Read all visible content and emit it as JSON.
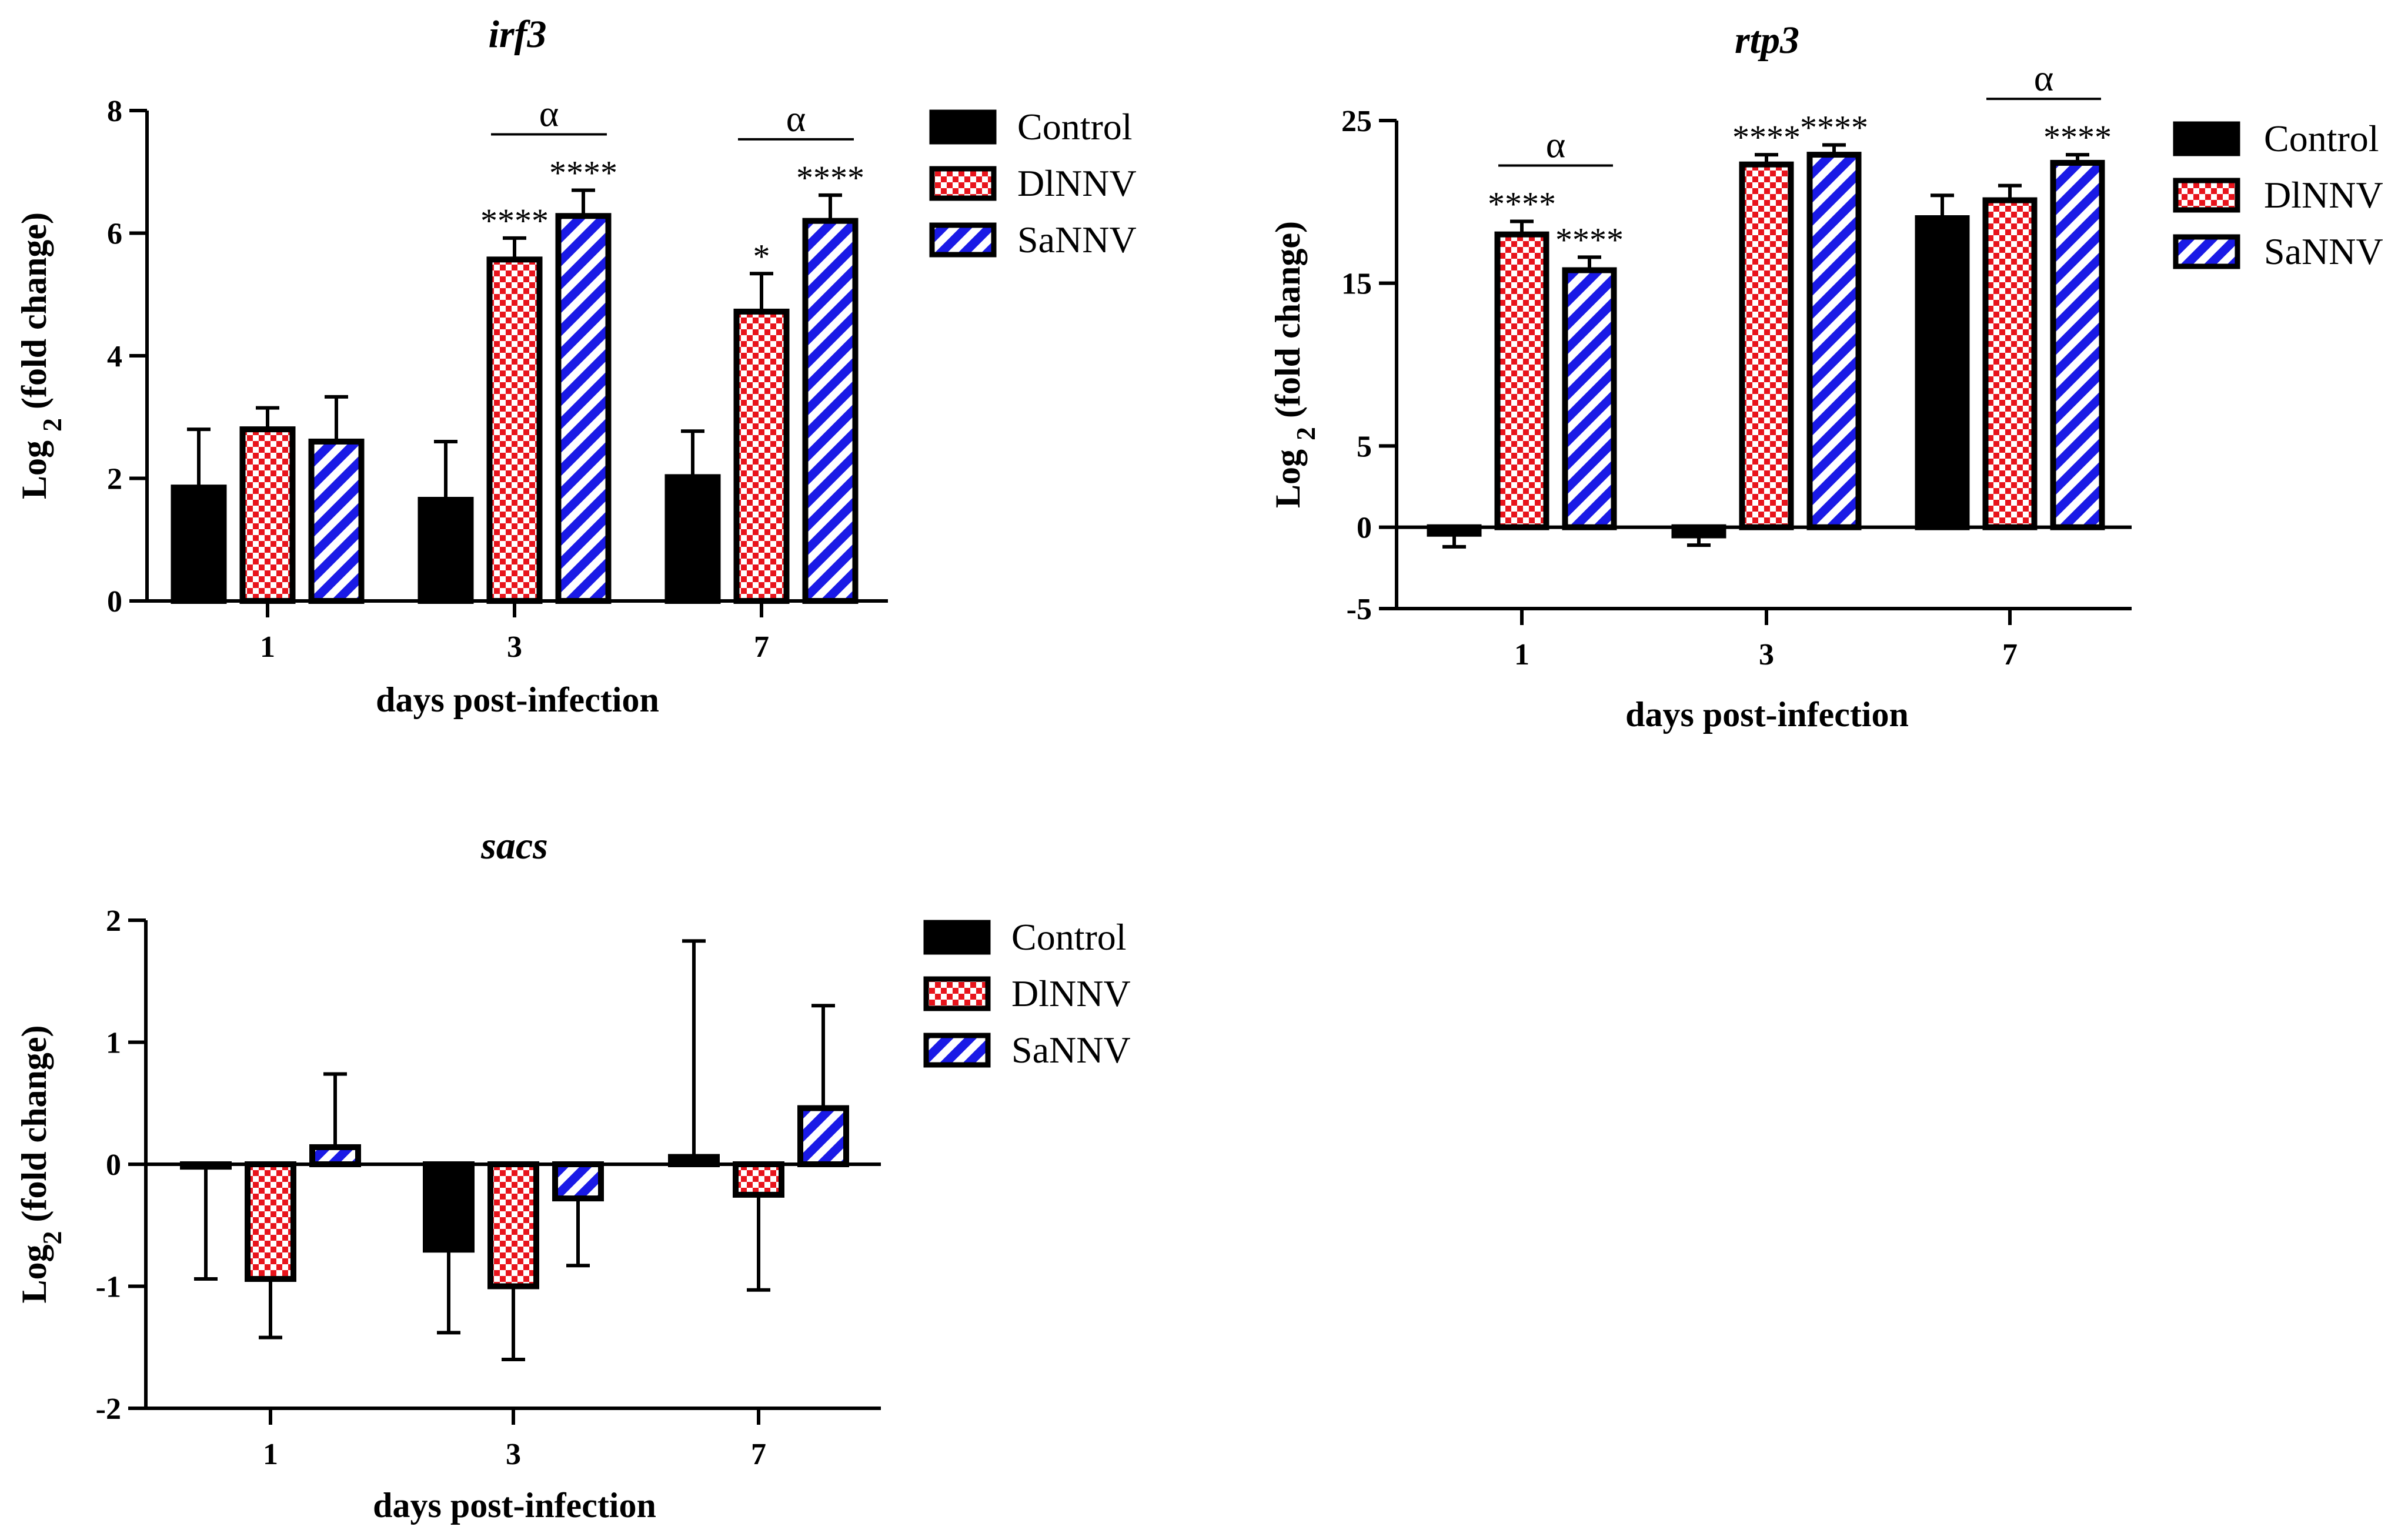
{
  "legend": {
    "items": [
      {
        "label": "Control",
        "pattern": "solid"
      },
      {
        "label": "DlNNV",
        "pattern": "checker"
      },
      {
        "label": "SaNNV",
        "pattern": "stripe"
      }
    ]
  },
  "colors": {
    "control": "#000000",
    "checker_red": "#e8141c",
    "stripe_blue": "#1a1ae6",
    "axis": "#000000"
  },
  "chart_data": [
    {
      "type": "bar",
      "title": "irf3",
      "xlabel": "days post-infection",
      "ylabel": "Log 2 (fold change)",
      "categories": [
        "1",
        "3",
        "7"
      ],
      "ylim": [
        0,
        8
      ],
      "yticks": [
        0,
        2,
        4,
        6,
        8
      ],
      "ytick_labels": [
        "0",
        "2",
        "4",
        "6",
        "8"
      ],
      "series": [
        {
          "name": "Control",
          "values": [
            1.85,
            1.65,
            2.02
          ],
          "errors": [
            0.95,
            0.95,
            0.75
          ]
        },
        {
          "name": "DlNNV",
          "values": [
            2.8,
            5.57,
            4.72
          ],
          "errors": [
            0.35,
            0.35,
            0.62
          ]
        },
        {
          "name": "SaNNV",
          "values": [
            2.6,
            6.28,
            6.2
          ],
          "errors": [
            0.73,
            0.42,
            0.42
          ]
        }
      ],
      "annotations": [
        {
          "category": 1,
          "series": 1,
          "text": "****"
        },
        {
          "category": 1,
          "series": 2,
          "text": "****"
        },
        {
          "category": 2,
          "series": 1,
          "text": "*"
        },
        {
          "category": 2,
          "series": 2,
          "text": "****"
        }
      ],
      "brackets": [
        {
          "category": 1,
          "text": "α"
        },
        {
          "category": 2,
          "text": "α"
        }
      ]
    },
    {
      "type": "bar",
      "title": "rtp3",
      "xlabel": "days post-infection",
      "ylabel": "Log 2 (fold change)",
      "categories": [
        "1",
        "3",
        "7"
      ],
      "ylim": [
        -5,
        25
      ],
      "yticks": [
        -5,
        0,
        5,
        15,
        25
      ],
      "ytick_labels": [
        "-5",
        "0",
        "5",
        "15",
        "25"
      ],
      "series": [
        {
          "name": "Control",
          "values": [
            -0.4,
            -0.5,
            19.0
          ],
          "errors": [
            0.8,
            0.6,
            1.4
          ]
        },
        {
          "name": "DlNNV",
          "values": [
            18.0,
            22.3,
            20.1
          ],
          "errors": [
            0.8,
            0.6,
            0.9
          ]
        },
        {
          "name": "SaNNV",
          "values": [
            15.8,
            22.9,
            22.4
          ],
          "errors": [
            0.8,
            0.6,
            0.5
          ]
        }
      ],
      "annotations": [
        {
          "category": 0,
          "series": 1,
          "text": "****"
        },
        {
          "category": 0,
          "series": 2,
          "text": "****"
        },
        {
          "category": 1,
          "series": 1,
          "text": "****"
        },
        {
          "category": 1,
          "series": 2,
          "text": "****"
        },
        {
          "category": 2,
          "series": 2,
          "text": "****"
        }
      ],
      "brackets": [
        {
          "category": 0,
          "text": "α"
        },
        {
          "category": 2,
          "text": "α"
        }
      ]
    },
    {
      "type": "bar",
      "title": "sacs",
      "xlabel": "days post-infection",
      "ylabel": "Log2 (fold change)",
      "categories": [
        "1",
        "3",
        "7"
      ],
      "ylim": [
        -2,
        2
      ],
      "yticks": [
        -2,
        -1,
        0,
        1,
        2
      ],
      "ytick_labels": [
        "-2",
        "-1",
        "0",
        "1",
        "2"
      ],
      "series": [
        {
          "name": "Control",
          "values": [
            -0.02,
            -0.7,
            0.06
          ],
          "errors": [
            0.92,
            0.68,
            1.77
          ]
        },
        {
          "name": "DlNNV",
          "values": [
            -0.94,
            -1.0,
            -0.25
          ],
          "errors": [
            0.48,
            0.6,
            0.78
          ]
        },
        {
          "name": "SaNNV",
          "values": [
            0.14,
            -0.28,
            0.46
          ],
          "errors": [
            0.6,
            0.55,
            0.84
          ]
        }
      ],
      "annotations": [],
      "brackets": []
    }
  ]
}
